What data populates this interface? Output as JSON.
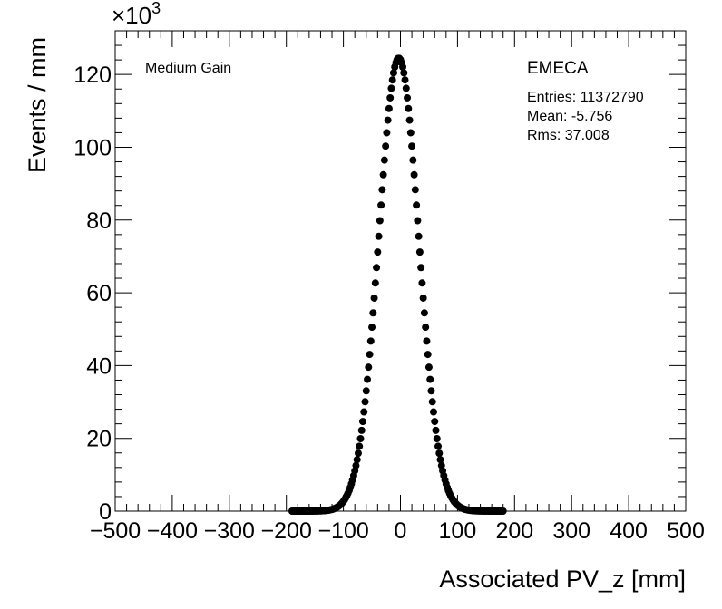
{
  "chart_data": {
    "type": "scatter",
    "title": "",
    "xlabel": "Associated PV_z [mm]",
    "ylabel": "Events / mm",
    "y_multiplier_label": "×10",
    "y_multiplier_exponent": "3",
    "xlim": [
      -500,
      500
    ],
    "ylim": [
      0,
      132
    ],
    "x_ticks": [
      -500,
      -400,
      -300,
      -200,
      -100,
      0,
      100,
      200,
      300,
      400,
      500
    ],
    "x_tick_labels": [
      "−500",
      "−400",
      "−300",
      "−200",
      "−100",
      "0",
      "100",
      "200",
      "300",
      "400",
      "500"
    ],
    "y_ticks": [
      0,
      20,
      40,
      60,
      80,
      100,
      120
    ],
    "y_tick_labels": [
      "0",
      "20",
      "40",
      "60",
      "80",
      "100",
      "120"
    ],
    "annotations": {
      "left_label": "Medium Gain",
      "region_label": "EMECA",
      "entries": "Entries: 11372790",
      "mean": "Mean: -5.756",
      "rms": "Rms: 37.008"
    },
    "series": [
      {
        "name": "EMECA Medium Gain",
        "marker": "circle",
        "color": "#000000",
        "x_start": -190,
        "x_end": 180,
        "x_step": 2,
        "gauss_mean": -3,
        "gauss_sigma": 35,
        "gauss_peak": 124.5
      }
    ]
  }
}
